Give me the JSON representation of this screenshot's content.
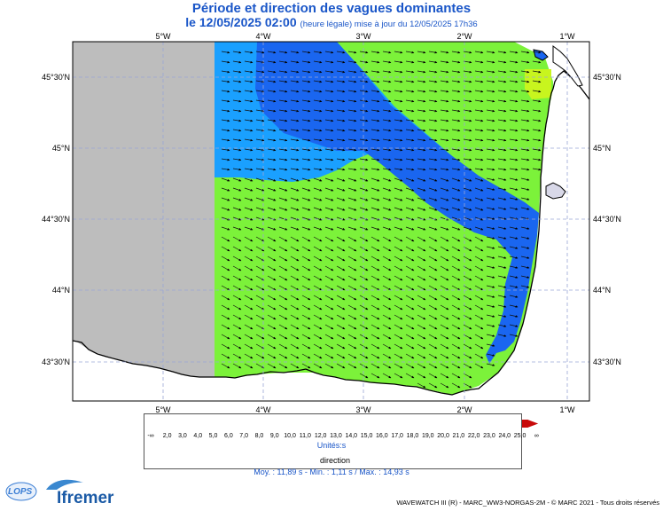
{
  "title": {
    "line1": "Période et direction des vagues dominantes",
    "date": "le 12/05/2025 02:00",
    "note": "(heure légale) mise à jour du 12/05/2025 17h36"
  },
  "map": {
    "lon_labels": [
      "5°W",
      "4°W",
      "3°W",
      "2°W",
      "1°W"
    ],
    "lat_labels": [
      "45°30'N",
      "45°N",
      "44°30'N",
      "44°N",
      "43°30'N"
    ],
    "colors": {
      "land": "#ffffff",
      "nodata": "#bdbdbd",
      "green": "#7cf23a",
      "blue": "#1a66f0",
      "lightblue": "#1aa0ff",
      "yellow": "#c8f51e",
      "grid": "#9aa6d6"
    }
  },
  "legend": {
    "min_label": "-∞",
    "max_label": "∞",
    "ticks": [
      "2,0",
      "3,0",
      "4,0",
      "5,0",
      "6,0",
      "7,0",
      "8,0",
      "9,0",
      "10,0",
      "11,0",
      "12,0",
      "13,0",
      "14,0",
      "15,0",
      "16,0",
      "17,0",
      "18,0",
      "19,0",
      "20,0",
      "21,0",
      "22,0",
      "23,0",
      "24,0",
      "25,0"
    ],
    "colors": [
      "#9a9aa0",
      "#a58cc8",
      "#8c3cf0",
      "#6e32f5",
      "#3c50f5",
      "#2864f5",
      "#1e78f5",
      "#148cf5",
      "#0aa0f5",
      "#00b8f0",
      "#1ee6a0",
      "#3cf050",
      "#78f028",
      "#a0f51e",
      "#d2f51e",
      "#f5eb14",
      "#f5c314",
      "#f5a00f",
      "#f57d0a",
      "#f55a0a",
      "#f0370a",
      "#e61e0a",
      "#d7140a",
      "#c80a0a"
    ],
    "units": "Unités:s",
    "direction_label": "direction"
  },
  "stats": {
    "text": "Moy. : 11,89 s   -   Min. : 1,11 s / Max. : 14,93 s"
  },
  "credit": "WAVEWATCH III (R) - MARC_WW3-NORGAS-2M - © MARC 2021 - Tous droits réservés",
  "logos": {
    "lops": "LOPS",
    "ifremer": "Ifremer"
  }
}
